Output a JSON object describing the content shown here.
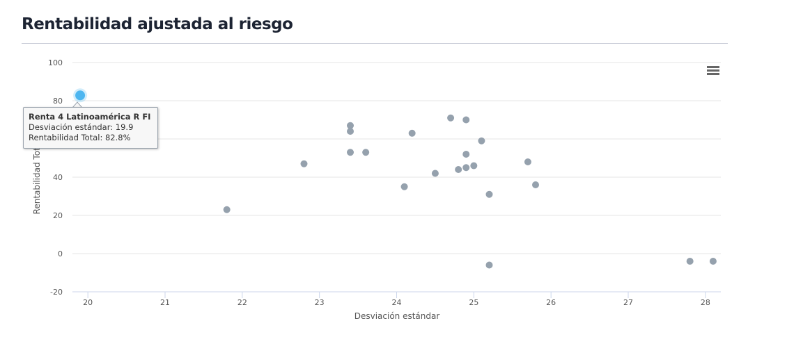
{
  "page": {
    "title": "Rentabilidad ajustada al riesgo"
  },
  "menu": {
    "icon": "hamburger-menu-icon"
  },
  "tooltip": {
    "name": "Renta 4 Latinoamérica R FI",
    "line1": "Desviación estándar: 19.9",
    "line2": "Rentabilidad Total: 82.8%"
  },
  "colors": {
    "point": "#95a1ad",
    "highlight": "#4db6f0",
    "title": "#1d2433"
  },
  "chart_data": {
    "type": "scatter",
    "title": "Rentabilidad ajustada al riesgo",
    "xlabel": "Desviación estándar",
    "ylabel": "Rentabilidad Total",
    "xlim": [
      19.8,
      28.2
    ],
    "ylim": [
      -20,
      100
    ],
    "xticks": [
      20,
      21,
      22,
      23,
      24,
      25,
      26,
      27,
      28
    ],
    "yticks": [
      -20,
      0,
      20,
      40,
      60,
      80,
      100
    ],
    "grid": "horizontal",
    "highlighted": {
      "x": 19.9,
      "y": 82.8,
      "label": "Renta 4 Latinoamérica R FI"
    },
    "points": [
      {
        "x": 21.8,
        "y": 23
      },
      {
        "x": 22.8,
        "y": 47
      },
      {
        "x": 23.4,
        "y": 67
      },
      {
        "x": 23.4,
        "y": 64
      },
      {
        "x": 23.4,
        "y": 53
      },
      {
        "x": 23.6,
        "y": 53
      },
      {
        "x": 24.1,
        "y": 35
      },
      {
        "x": 24.2,
        "y": 63
      },
      {
        "x": 24.5,
        "y": 42
      },
      {
        "x": 24.7,
        "y": 71
      },
      {
        "x": 24.8,
        "y": 44
      },
      {
        "x": 24.9,
        "y": 70
      },
      {
        "x": 24.9,
        "y": 52
      },
      {
        "x": 24.9,
        "y": 45
      },
      {
        "x": 25.0,
        "y": 46
      },
      {
        "x": 25.1,
        "y": 59
      },
      {
        "x": 25.2,
        "y": 31
      },
      {
        "x": 25.2,
        "y": -6
      },
      {
        "x": 25.7,
        "y": 48
      },
      {
        "x": 25.8,
        "y": 36
      },
      {
        "x": 27.8,
        "y": -4
      },
      {
        "x": 28.1,
        "y": -4
      }
    ]
  }
}
